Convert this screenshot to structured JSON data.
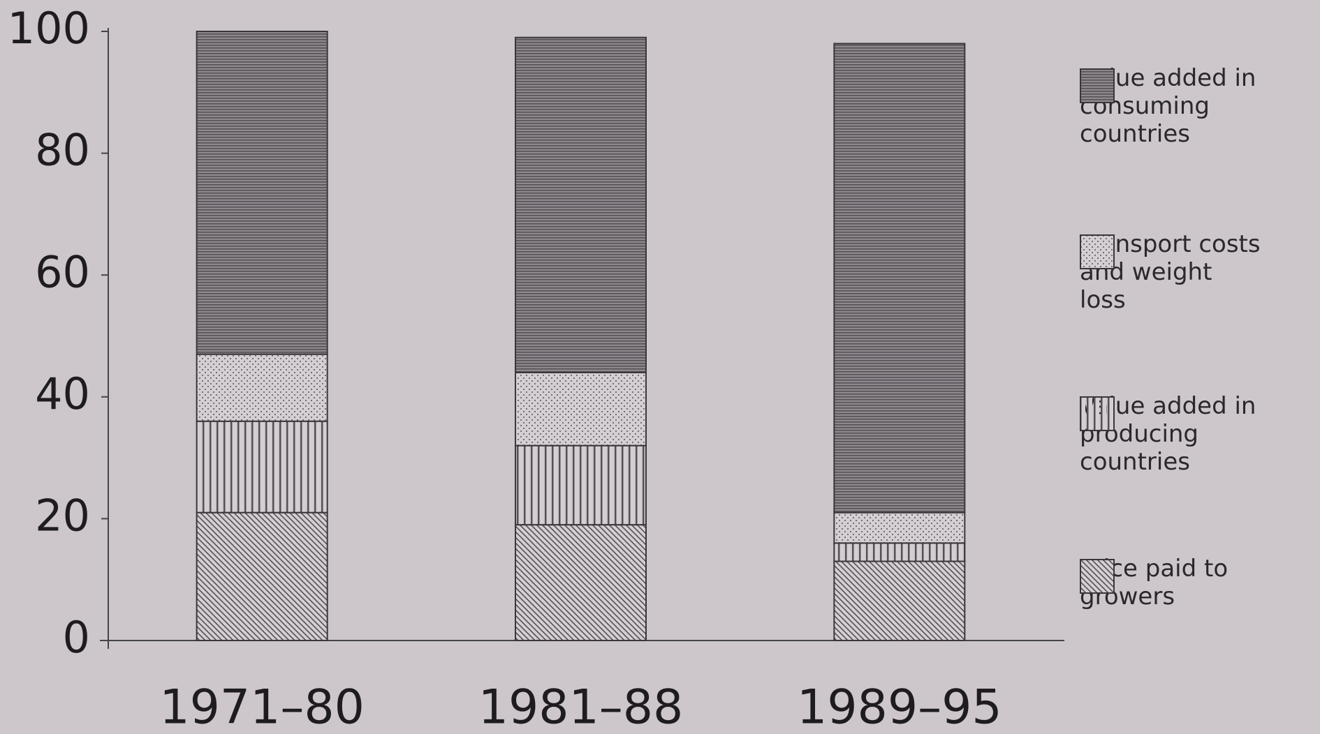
{
  "chart_data": {
    "type": "bar",
    "stacked": true,
    "categories": [
      "1971–80",
      "1981–88",
      "1989–95"
    ],
    "series": [
      {
        "name": "Price paid to growers",
        "color": "#555055",
        "pattern": "diagonal",
        "values": [
          21,
          19,
          13
        ]
      },
      {
        "name": "Value added in producing countries",
        "color": "#555055",
        "pattern": "vertical",
        "values": [
          15,
          13,
          3
        ]
      },
      {
        "name": "Transport costs and weight loss",
        "color": "#555055",
        "pattern": "dots",
        "values": [
          11,
          12,
          5
        ]
      },
      {
        "name": "Value added in consuming countries",
        "color": "#555055",
        "pattern": "horizontal",
        "values": [
          53,
          55,
          77
        ]
      }
    ],
    "ylim": [
      0,
      100
    ],
    "yticks": [
      0,
      20,
      40,
      60,
      80,
      100
    ],
    "grid": false,
    "legend": "right"
  }
}
